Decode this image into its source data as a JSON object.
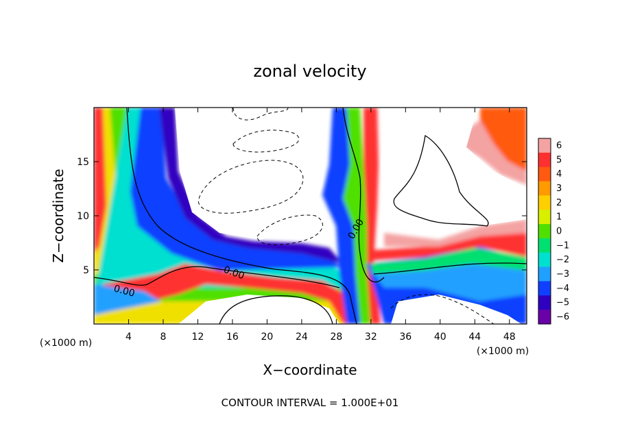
{
  "chart_data": {
    "type": "heatmap",
    "title": "zonal velocity",
    "xlabel": "X−coordinate",
    "ylabel": "Z−coordinate",
    "x_unit_left": "(×1000 m)",
    "x_unit_right": "(×1000 m)",
    "xlim": [
      0,
      50
    ],
    "ylim": [
      0,
      20
    ],
    "x_ticks": [
      4,
      8,
      12,
      16,
      20,
      24,
      28,
      32,
      36,
      40,
      44,
      48
    ],
    "y_ticks": [
      5,
      10,
      15
    ],
    "contour_label": "0.00",
    "footer": "CONTOUR INTERVAL = 1.000E+01",
    "colorbar": {
      "labels": [
        "6",
        "5",
        "4",
        "3",
        "2",
        "1",
        "0",
        "−1",
        "−2",
        "−3",
        "−4",
        "−5",
        "−6"
      ],
      "values": [
        6,
        5,
        4,
        3,
        2,
        1,
        0,
        -1,
        -2,
        -3,
        -4,
        -5,
        -6
      ],
      "colors": [
        "#f4a3a3",
        "#ff3030",
        "#ff5a10",
        "#ff9a00",
        "#ffd000",
        "#d8f000",
        "#50e000",
        "#00e070",
        "#00e0d0",
        "#20a0ff",
        "#1040ff",
        "#3000c0",
        "#6a00a8"
      ]
    }
  }
}
